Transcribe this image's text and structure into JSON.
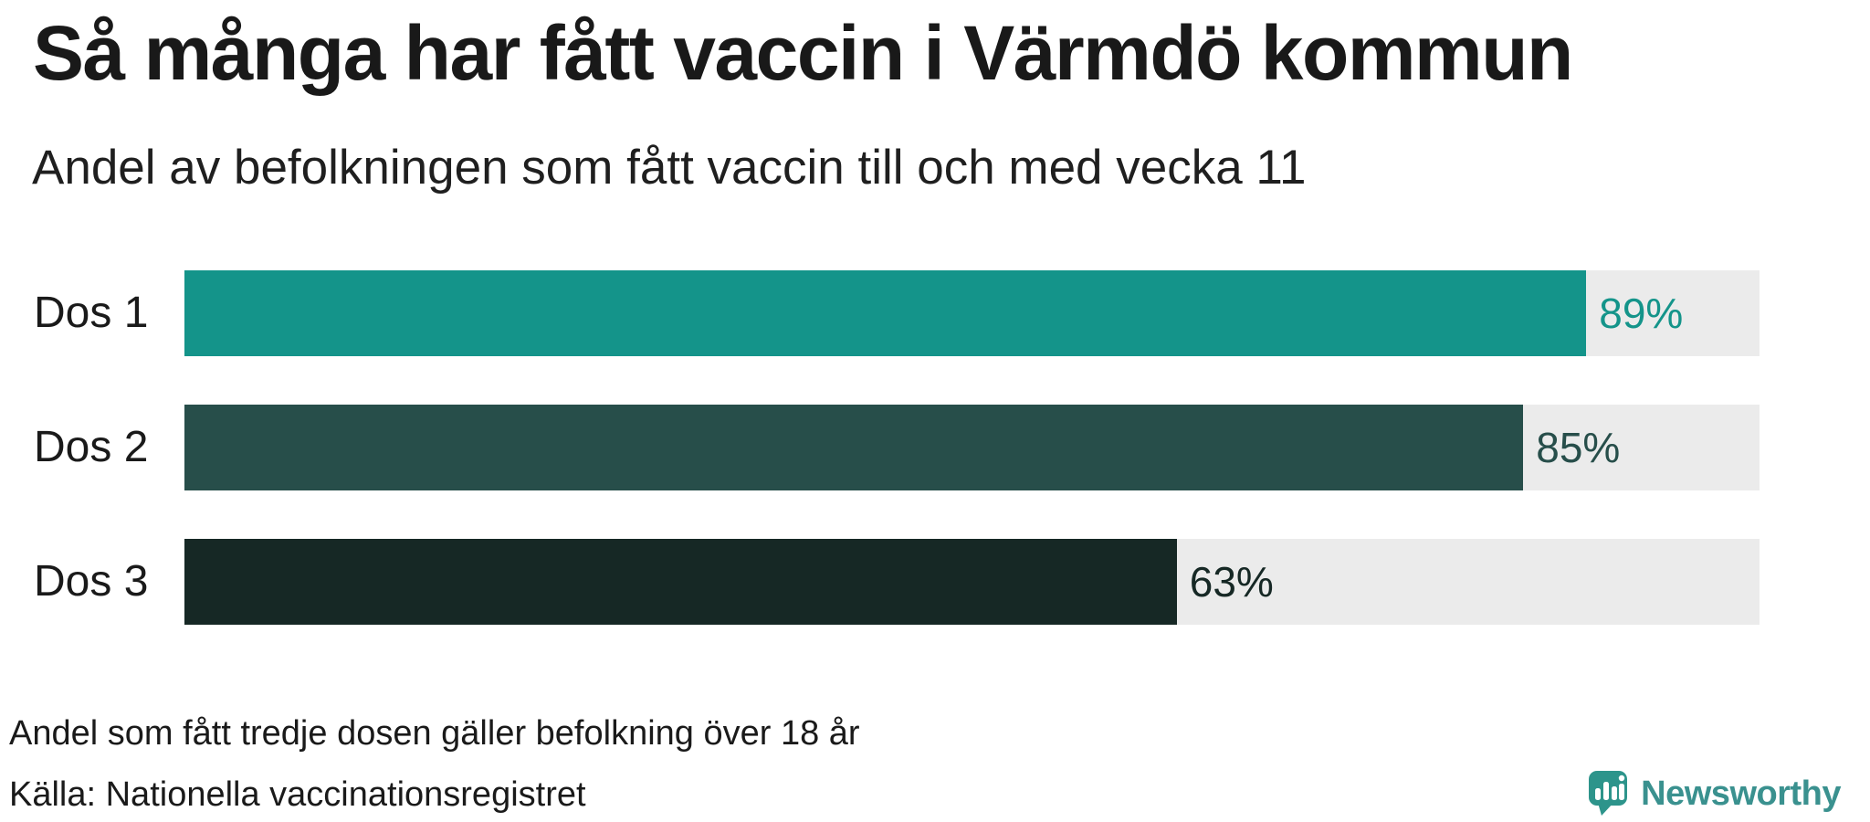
{
  "header": {
    "title": "Så många har fått vaccin i Värmdö kommun",
    "subtitle": "Andel av befolkningen som fått vaccin till och med vecka 11"
  },
  "chart_data": {
    "type": "bar",
    "orientation": "horizontal",
    "categories": [
      "Dos 1",
      "Dos 2",
      "Dos 3"
    ],
    "values": [
      89,
      85,
      63
    ],
    "value_labels": [
      "89%",
      "85%",
      "63%"
    ],
    "xlim": [
      0,
      100
    ],
    "bar_colors": [
      "#14948a",
      "#274e4a",
      "#162825"
    ],
    "value_label_colors": [
      "#14948a",
      "#274e4a",
      "#162825"
    ],
    "track_color": "#ebebeb",
    "grid": false,
    "legend": false
  },
  "footer": {
    "footnote": "Andel som fått tredje dosen gäller befolkning över 18 år",
    "source": "Källa: Nationella vaccinationsregistret"
  },
  "branding": {
    "logo_text": "Newsworthy",
    "logo_text_color": "#3a918f",
    "logo_icon_color": "#2d948b"
  }
}
